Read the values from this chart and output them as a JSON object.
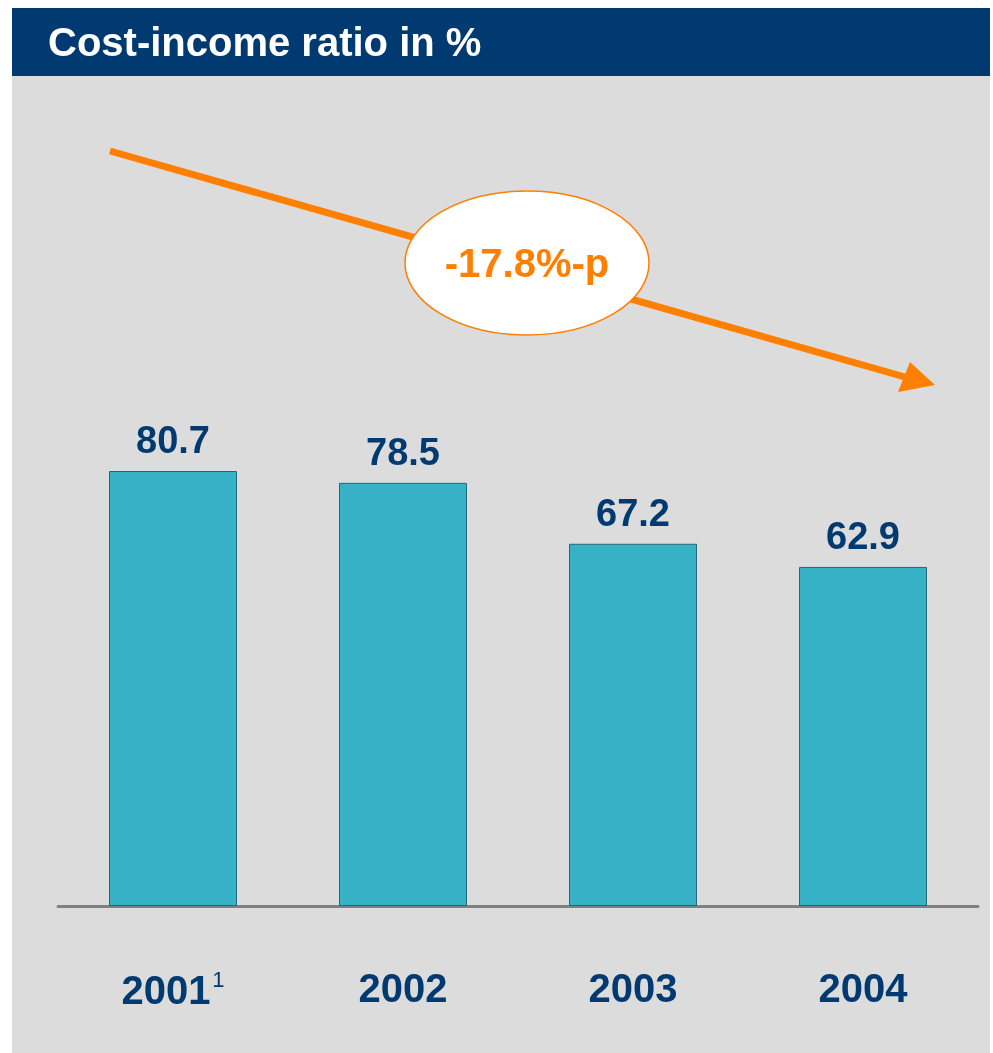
{
  "chart_data": {
    "type": "bar",
    "title": "Cost-income ratio in %",
    "categories": [
      "2001$^{1}$",
      "2002",
      "2003",
      "2004"
    ],
    "values": [
      80.7,
      78.5,
      67.2,
      62.9
    ],
    "color": "#36b1c5",
    "data_labels": true,
    "annotations": [
      "-17.8%-p"
    ]
  }
}
